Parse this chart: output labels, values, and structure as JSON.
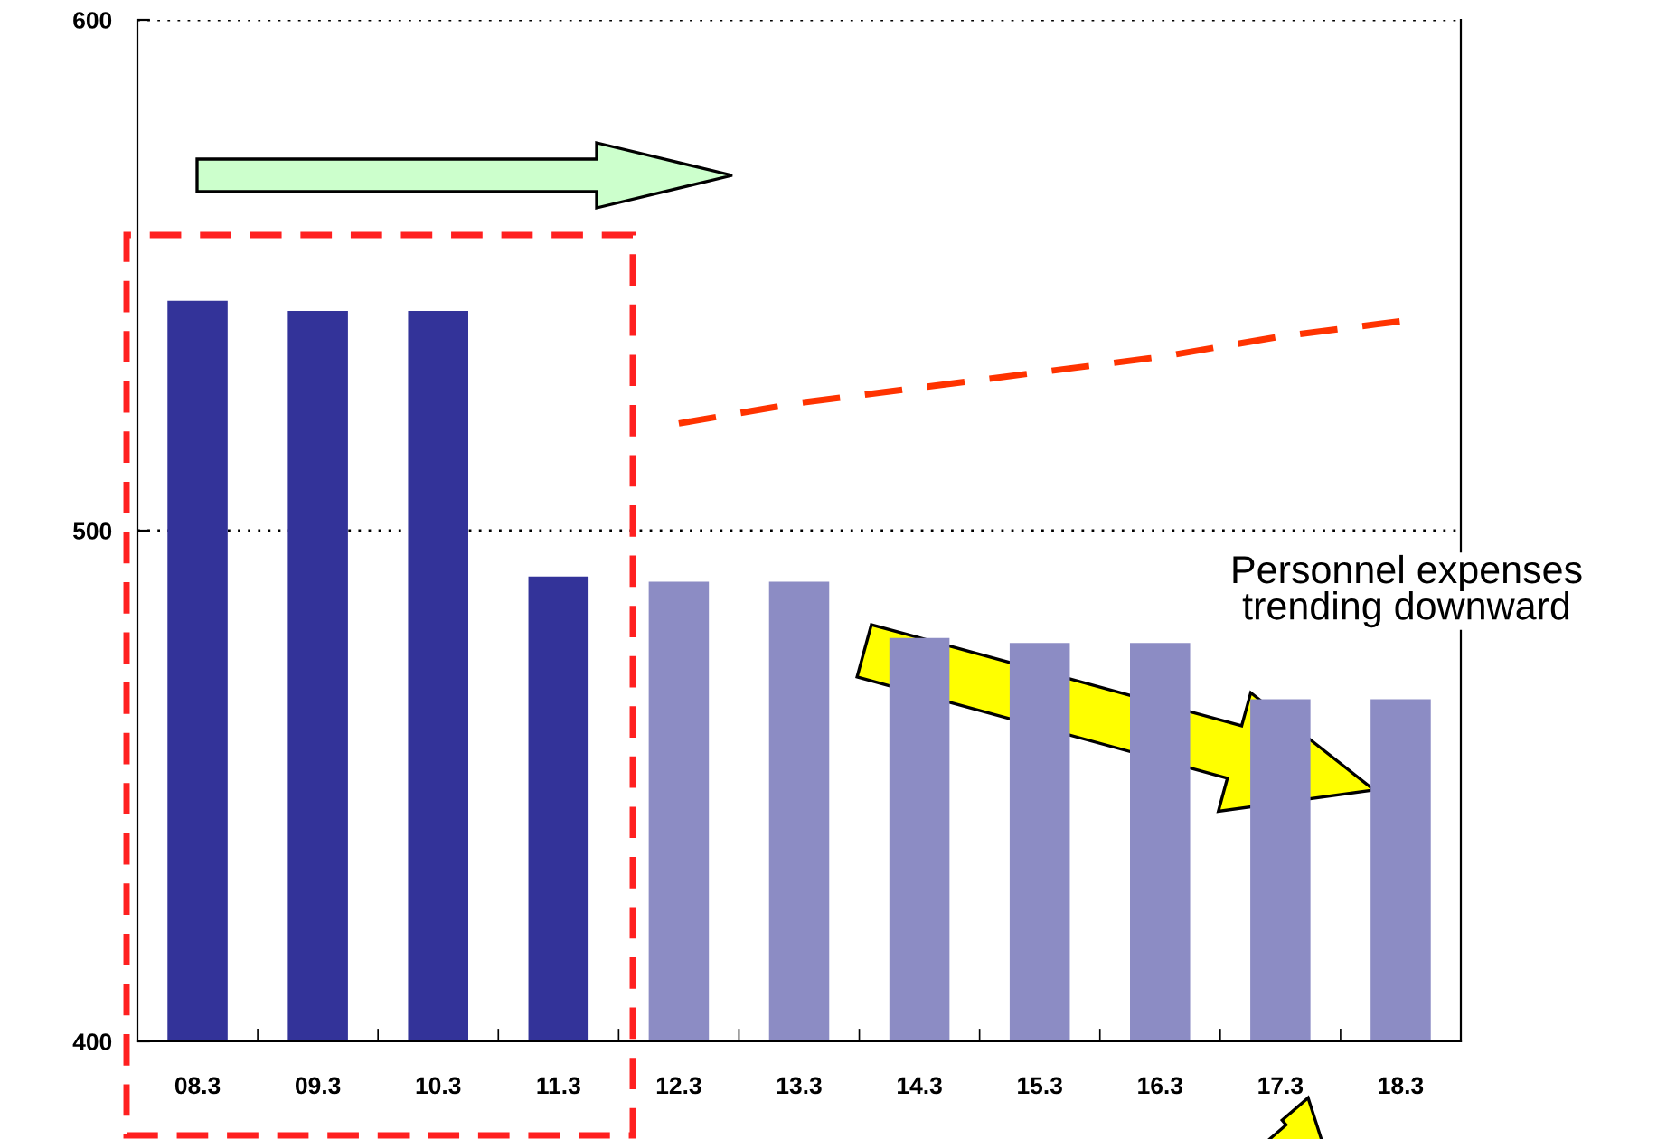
{
  "chart_data": {
    "type": "bar",
    "categories": [
      "08.3",
      "09.3",
      "10.3",
      "11.3",
      "12.3",
      "13.3",
      "14.3",
      "15.3",
      "16.3",
      "17.3",
      "18.3"
    ],
    "series": [
      {
        "color": "#333399",
        "values": [
          545,
          543,
          543,
          491,
          null,
          null,
          null,
          null,
          null,
          null,
          null
        ]
      },
      {
        "color": "#8c8cc4",
        "values": [
          null,
          null,
          null,
          null,
          490,
          490,
          479,
          478,
          478,
          467,
          467
        ]
      },
      {
        "type": "line",
        "color": "#ff3300",
        "line_style": "dashed",
        "values": [
          null,
          null,
          null,
          null,
          521,
          525,
          528,
          531,
          534,
          538,
          541
        ]
      }
    ],
    "ylim": [
      400,
      600
    ],
    "yticks": [
      400,
      500,
      600
    ],
    "grid": "y",
    "annotations": [
      "Personnel expenses\ntrending downward"
    ]
  }
}
